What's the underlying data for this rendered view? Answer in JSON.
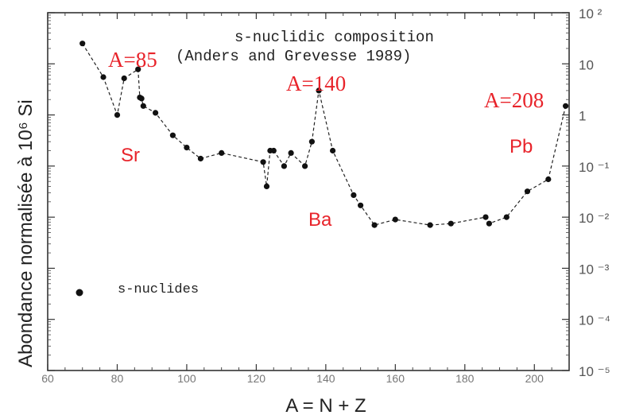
{
  "chart_data": {
    "type": "line",
    "title": "s-nuclidic composition",
    "subtitle": "(Anders and Grevesse 1989)",
    "ylabel": "Abondance normalisée à 10⁶ Si",
    "xlabel": "A = N + Z",
    "xlim": [
      60,
      210
    ],
    "ylim_log10": [
      -5,
      2
    ],
    "y_scale": "log",
    "x_ticks": [
      "60",
      "80",
      "100",
      "120",
      "140",
      "160",
      "180",
      "200"
    ],
    "y_ticks": [
      "10 ²",
      "10",
      "1",
      "10 ⁻¹",
      "10 ⁻²",
      "10 ⁻³",
      "10 ⁻⁴",
      "10 ⁻⁵"
    ],
    "legend": {
      "label": "s-nuclides",
      "position": "lower-left"
    },
    "series": [
      {
        "name": "s-nuclides",
        "x": [
          70,
          76,
          80,
          82,
          86,
          86.5,
          87,
          87.5,
          91,
          96,
          100,
          104,
          110,
          122,
          123,
          124,
          125,
          128,
          130,
          134,
          136,
          138,
          142,
          148,
          150,
          154,
          160,
          170,
          176,
          186,
          187,
          192,
          198,
          204,
          209
        ],
        "y": [
          25,
          5.5,
          1.0,
          5.2,
          7.8,
          2.2,
          2.1,
          1.5,
          1.1,
          0.4,
          0.23,
          0.14,
          0.18,
          0.12,
          0.04,
          0.2,
          0.2,
          0.1,
          0.18,
          0.1,
          0.3,
          3.0,
          0.2,
          0.027,
          0.017,
          0.007,
          0.009,
          0.007,
          0.0075,
          0.01,
          0.0075,
          0.01,
          0.032,
          0.055,
          1.5
        ]
      }
    ],
    "annotations": [
      {
        "text": "A=85",
        "x": 85,
        "color": "#e8232a"
      },
      {
        "text": "A=140",
        "x": 140,
        "color": "#e8232a"
      },
      {
        "text": "A=208",
        "x": 208,
        "color": "#e8232a"
      },
      {
        "text": "Sr",
        "x": 88,
        "color": "#e8232a"
      },
      {
        "text": "Ba",
        "x": 138,
        "color": "#e8232a"
      },
      {
        "text": "Pb",
        "x": 208,
        "color": "#e8232a"
      }
    ]
  }
}
